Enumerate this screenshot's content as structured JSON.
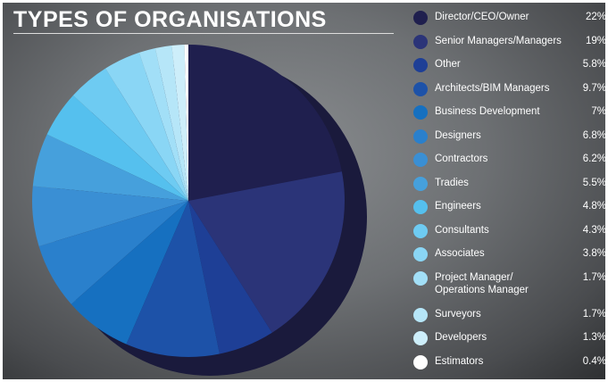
{
  "chart_data": {
    "type": "pie",
    "title": "TYPES OF ORGANISATIONS",
    "categories": [
      "Director/CEO/Owner",
      "Senior Managers/Managers",
      "Other",
      "Architects/BIM Managers",
      "Business Development",
      "Designers",
      "Contractors",
      "Tradies",
      "Engineers",
      "Consultants",
      "Associates",
      "Project Manager/\nOperations Manager",
      "Surveyors",
      "Developers",
      "Estimators"
    ],
    "values": [
      22,
      19,
      5.8,
      9.7,
      7,
      6.8,
      6.2,
      5.5,
      4.8,
      4.3,
      3.8,
      1.7,
      1.7,
      1.3,
      0.4
    ],
    "value_labels": [
      "22%",
      "19%",
      "5.8%",
      "9.7%",
      "7%",
      "6.8%",
      "6.2%",
      "5.5%",
      "4.8%",
      "4.3%",
      "3.8%",
      "1.7%",
      "1.7%",
      "1.3%",
      "0.4%"
    ],
    "colors": [
      "#1f1f4e",
      "#2b3478",
      "#1e3f96",
      "#1d52a8",
      "#1670c0",
      "#2a80cc",
      "#3a8fd4",
      "#46a0dc",
      "#55c0ee",
      "#6ecbf2",
      "#8ad6f5",
      "#a2dff7",
      "#b6e6f8",
      "#cdeefa",
      "#ffffff"
    ]
  }
}
